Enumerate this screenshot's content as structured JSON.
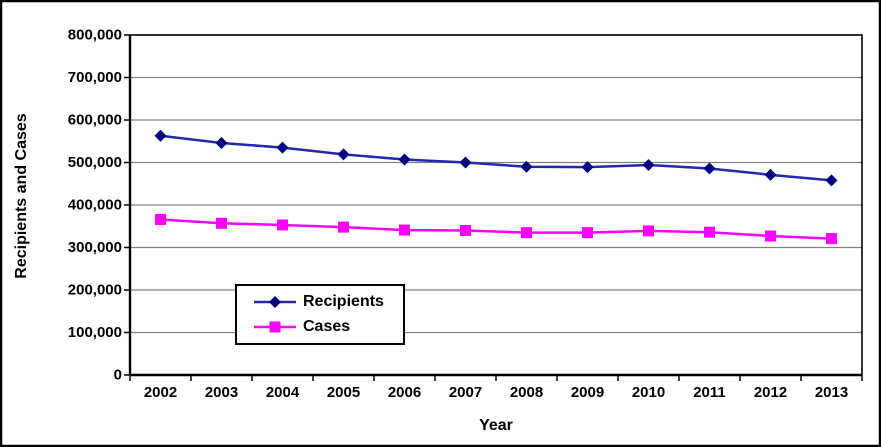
{
  "frame": {
    "background": "#FFFFFF",
    "border_color": "#000000"
  },
  "chart_data": {
    "type": "line",
    "title": "",
    "xlabel": "Year",
    "ylabel": "Recipients and Cases",
    "categories": [
      "2002",
      "2003",
      "2004",
      "2005",
      "2006",
      "2007",
      "2008",
      "2009",
      "2010",
      "2011",
      "2012",
      "2013"
    ],
    "series": [
      {
        "name": "Recipients",
        "marker": "diamond",
        "marker_color": "#000080",
        "line_color": "#2626AE",
        "values": [
          563000,
          546000,
          535000,
          519000,
          507000,
          500000,
          490000,
          489000,
          494000,
          486000,
          471000,
          458000
        ]
      },
      {
        "name": "Cases",
        "marker": "square",
        "marker_color": "#FF00FF",
        "line_color": "#FF00FF",
        "values": [
          366000,
          357000,
          353000,
          348000,
          341000,
          340000,
          335000,
          335000,
          339000,
          336000,
          327000,
          321000
        ]
      }
    ],
    "ylim": [
      0,
      800000
    ],
    "ytick_step": 100000,
    "ytick_labels": [
      "0",
      "100,000",
      "200,000",
      "300,000",
      "400,000",
      "500,000",
      "600,000",
      "700,000",
      "800,000"
    ],
    "grid": true,
    "gridline_color": "#808080",
    "axis_color": "#000000",
    "tick_label_color": "#000000",
    "legend_position": "inside-bottom-left"
  }
}
